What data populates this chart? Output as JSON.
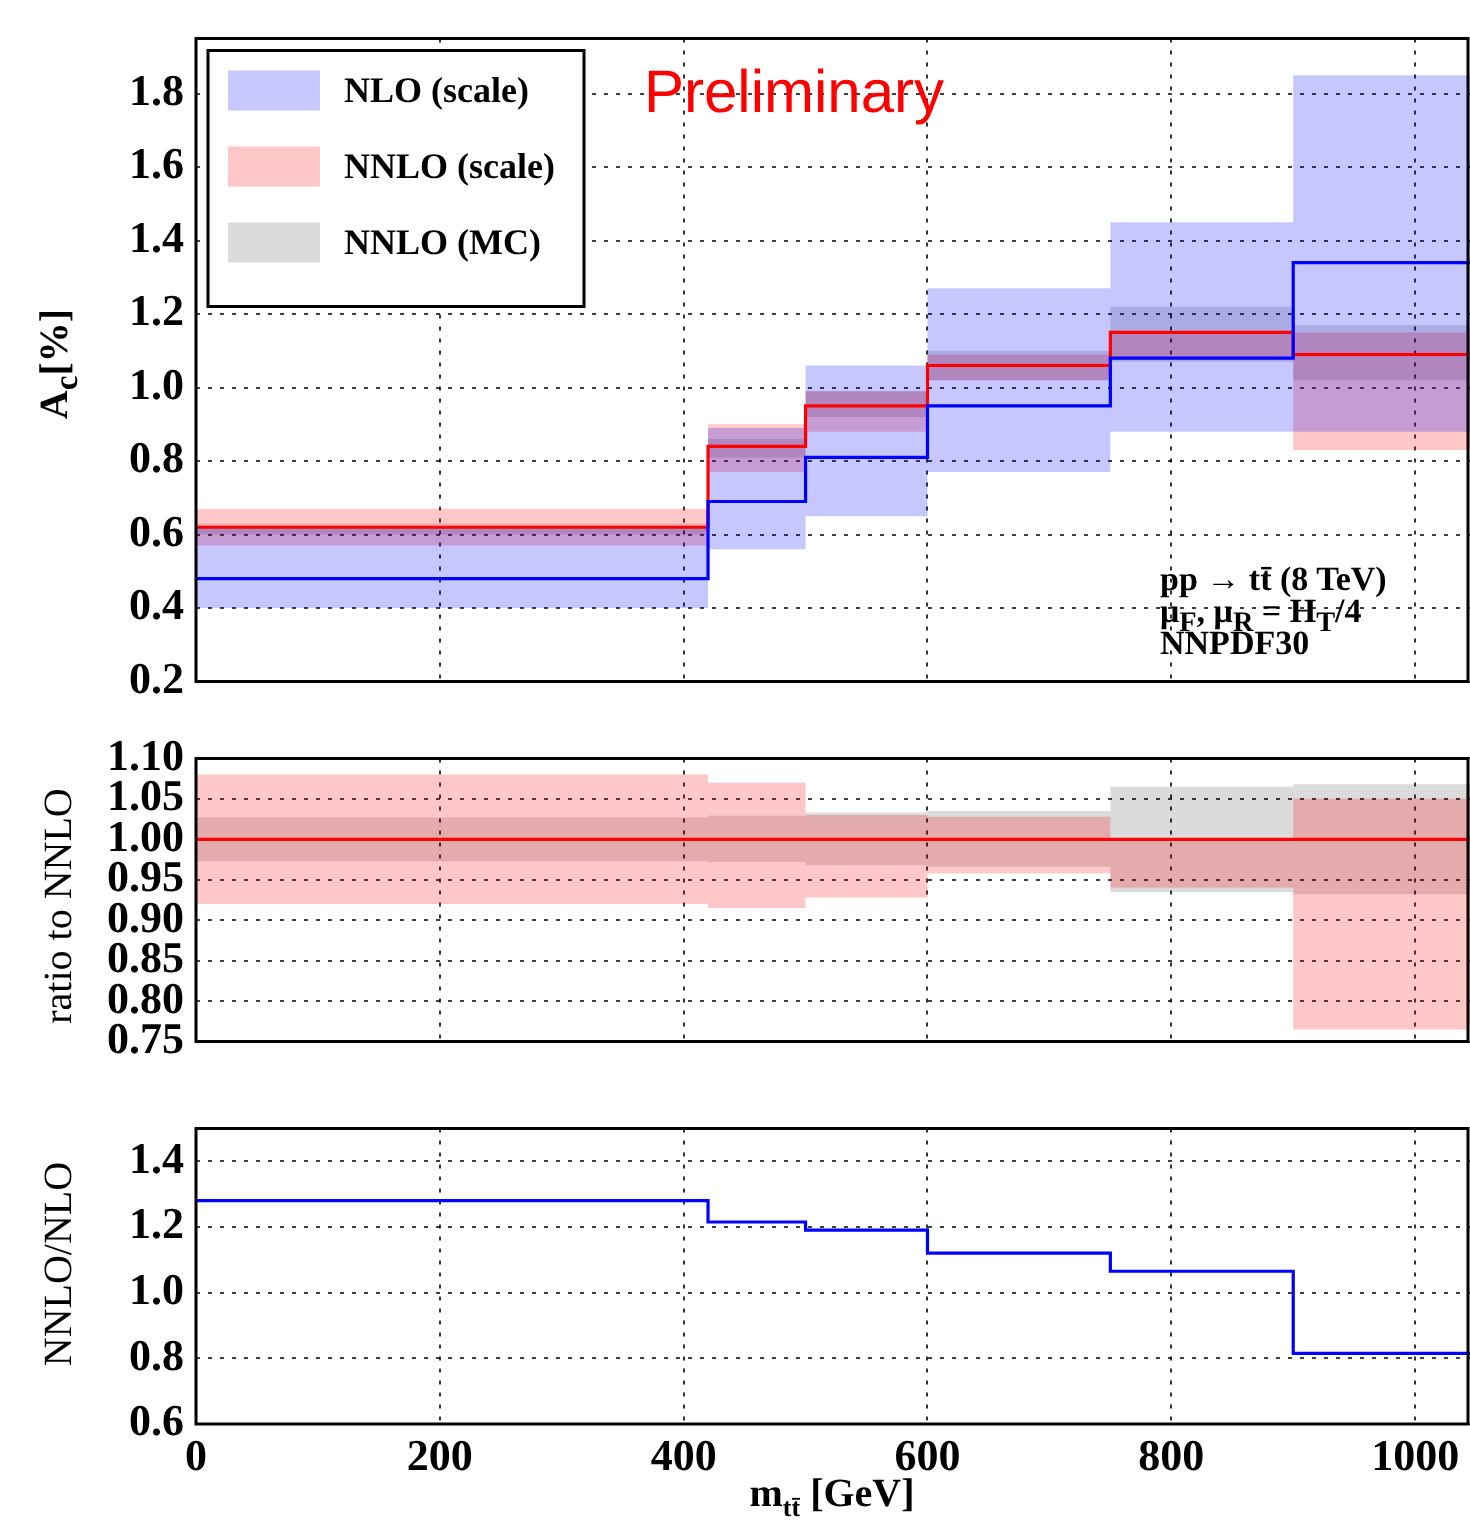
{
  "chart_data": [
    {
      "type": "step",
      "ylabel": "A$_{c}$[%]",
      "x": [
        0,
        420,
        500,
        600,
        750,
        900,
        1045
      ],
      "xlim": [
        0,
        1045
      ],
      "xticks": [
        0,
        200,
        400,
        600,
        800,
        1000
      ],
      "ylim": [
        0.2,
        1.95
      ],
      "yticks": [
        0.2,
        0.4,
        0.6,
        0.8,
        {
          "value": 1.0,
          "label": "1.0"
        },
        1.2,
        1.4,
        1.6,
        1.8
      ],
      "grid": true,
      "legend": "top left",
      "tick_labels": "y",
      "annotations": [
        "Preliminary",
        "pp → tt̄ (8 TeV)",
        "μ$_{F}$, μ$_{R}$ = H$_{T}$/4",
        "NNPDF30"
      ],
      "series": [
        {
          "name": "NLO (scale)",
          "color": "#0000ff",
          "values": [
            0.48,
            0.69,
            0.81,
            0.95,
            1.08,
            1.34,
            1.34
          ],
          "lower": [
            0.4,
            0.56,
            0.65,
            0.77,
            0.88,
            0.88,
            0.88
          ],
          "upper": [
            0.62,
            0.89,
            1.06,
            1.27,
            1.45,
            1.85,
            1.85
          ]
        },
        {
          "name": "NNLO (scale)",
          "color": "#ff0000",
          "values": [
            0.62,
            0.84,
            0.95,
            1.06,
            1.15,
            1.09,
            1.09
          ],
          "lower": [
            0.57,
            0.77,
            0.88,
            1.02,
            1.08,
            0.83,
            0.83
          ],
          "upper": [
            0.67,
            0.9,
            0.99,
            1.09,
            1.15,
            1.15,
            1.15
          ]
        },
        {
          "name": "NNLO (MC)",
          "color": "#000000",
          "values": [
            null,
            null,
            null,
            null,
            null,
            null,
            null
          ],
          "lower": [
            0.6,
            0.81,
            0.92,
            1.02,
            1.07,
            1.02,
            1.02
          ],
          "upper": [
            0.63,
            0.86,
            0.99,
            1.1,
            1.22,
            1.17,
            1.17
          ]
        }
      ]
    },
    {
      "type": "step",
      "ylabel": "ratio to NNLO",
      "x": [
        0,
        420,
        500,
        600,
        750,
        900,
        1045
      ],
      "xlim": [
        0,
        1045
      ],
      "xticks": [
        0,
        200,
        400,
        600,
        800,
        1000
      ],
      "ylim": [
        0.75,
        1.1
      ],
      "yticks": [
        {
          "value": 0.75,
          "label": "0.75"
        },
        {
          "value": 0.8,
          "label": "0.80"
        },
        0.85,
        {
          "value": 0.9,
          "label": "0.90"
        },
        0.95,
        {
          "value": 1.0,
          "label": "1.00"
        },
        1.05,
        {
          "value": 1.1,
          "label": "1.10"
        }
      ],
      "grid": true,
      "tick_labels": "y",
      "series": [
        {
          "color": "#ff0000",
          "values": [
            1.0,
            1.0,
            1.0,
            1.0,
            1.0,
            1.0,
            1.0
          ],
          "lower": [
            0.92,
            0.915,
            0.928,
            0.958,
            0.94,
            0.765,
            0.765
          ],
          "upper": [
            1.08,
            1.07,
            1.03,
            1.028,
            1.0,
            1.05,
            1.05
          ]
        },
        {
          "color": "#000000",
          "values": [
            null,
            null,
            null,
            null,
            null,
            null,
            null
          ],
          "lower": [
            0.973,
            0.972,
            0.968,
            0.966,
            0.935,
            0.932,
            0.932
          ],
          "upper": [
            1.027,
            1.029,
            1.033,
            1.035,
            1.065,
            1.068,
            1.068
          ]
        }
      ]
    },
    {
      "type": "step",
      "ylabel": "NNLO/NLO",
      "xlabel": "m$_{tt̄}$ [GeV]",
      "x": [
        0,
        420,
        500,
        600,
        750,
        900,
        1045
      ],
      "xlim": [
        0,
        1045
      ],
      "xticks": [
        0,
        200,
        400,
        600,
        800,
        1000
      ],
      "ylim": [
        0.6,
        1.5
      ],
      "yticks": [
        0.6,
        0.8,
        {
          "value": 1.0,
          "label": "1.0"
        },
        1.2,
        1.4
      ],
      "grid": true,
      "series": [
        {
          "color": "#0000ff",
          "values": [
            1.28,
            1.215,
            1.19,
            1.12,
            1.065,
            0.815,
            0.815
          ]
        }
      ]
    }
  ]
}
